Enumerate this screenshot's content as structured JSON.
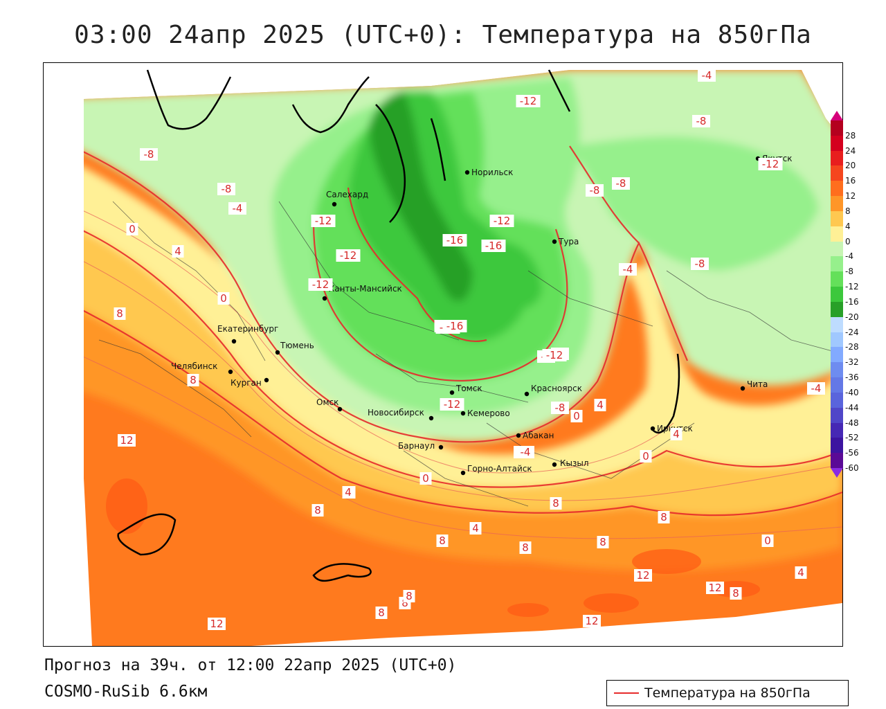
{
  "title": "03:00 24апр 2025 (UTC+0): Температура на 850гПа",
  "footer": {
    "forecast": "Прогноз на 39ч. от 12:00 22апр 2025 (UTC+0)",
    "model": "COSMO-RuSib 6.6км"
  },
  "legend": {
    "label": "Температура на 850гПа",
    "line_color": "#e62b2b"
  },
  "colorbar": {
    "ticks": [
      "28",
      "24",
      "20",
      "16",
      "12",
      "8",
      "4",
      "0",
      "-4",
      "-8",
      "-12",
      "-16",
      "-20",
      "-24",
      "-28",
      "-32",
      "-36",
      "-40",
      "-44",
      "-48",
      "-52",
      "-56",
      "-60"
    ],
    "colors": [
      "#b4001e",
      "#d4001e",
      "#e81e1e",
      "#f5461e",
      "#ff6e1e",
      "#ff9628",
      "#ffc850",
      "#fff096",
      "#c8f5b4",
      "#96f08c",
      "#64e05a",
      "#3cc83c",
      "#28a028",
      "#bedcff",
      "#a0c8ff",
      "#82aaff",
      "#6e8cf0",
      "#6478e6",
      "#5a64dc",
      "#5046c8",
      "#4628b4",
      "#3c14a0",
      "#5a0a96"
    ]
  },
  "cities": [
    {
      "name": "Норильск"
    },
    {
      "name": "Якутск"
    },
    {
      "name": "Салехард"
    },
    {
      "name": "Тура"
    },
    {
      "name": "Ханты-Мансийск"
    },
    {
      "name": "Екатеринбург"
    },
    {
      "name": "Тюмень"
    },
    {
      "name": "Челябинск"
    },
    {
      "name": "Курган"
    },
    {
      "name": "Омск"
    },
    {
      "name": "Новосибирск"
    },
    {
      "name": "Томск"
    },
    {
      "name": "Кемерово"
    },
    {
      "name": "Красноярск"
    },
    {
      "name": "Барнаул"
    },
    {
      "name": "Абакан"
    },
    {
      "name": "Горно-Алтайск"
    },
    {
      "name": "Кызыл"
    },
    {
      "name": "Иркутск"
    },
    {
      "name": "Чита"
    }
  ],
  "contour_labels": [
    "-4",
    "-12",
    "-8",
    "-8",
    "-12",
    "-8",
    "-8",
    "-8",
    "-4",
    "0",
    "-12",
    "-12",
    "-16",
    "-16",
    "-12",
    "-8",
    "4",
    "-12",
    "-8",
    "8",
    "-4",
    "-12",
    "-12",
    "-16",
    "-4",
    "0",
    "-12",
    "-8",
    "8",
    "-12",
    "-4",
    "-8",
    "0",
    "4",
    "4",
    "0",
    "-4",
    "12",
    "4",
    "-4",
    "4",
    "0",
    "8",
    "8",
    "4",
    "8",
    "8",
    "8",
    "8",
    "8",
    "12",
    "12",
    "8",
    "8",
    "0",
    "8",
    "4",
    "12",
    "12"
  ]
}
